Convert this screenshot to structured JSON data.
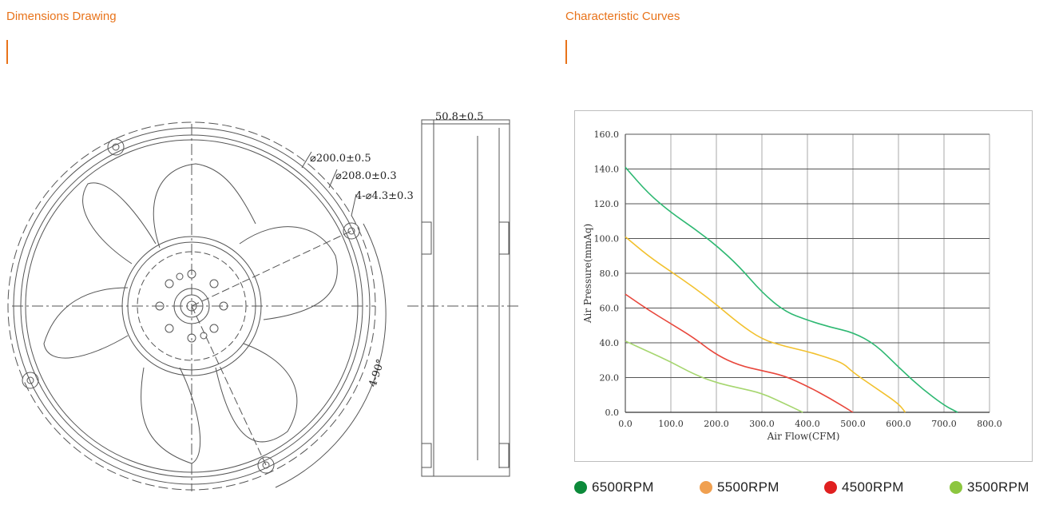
{
  "sections": {
    "dimensions_title": "Dimensions Drawing",
    "curves_title": "Characteristic Curves"
  },
  "accent_color": "#e8731a",
  "drawing": {
    "dim_outer": "⌀200.0±0.5",
    "dim_outer2": "⌀208.0±0.3",
    "dim_holes": "4-⌀4.3±0.3",
    "dim_angle": "4-90°",
    "dim_depth": "50.8±0.5"
  },
  "chart_data": {
    "type": "line",
    "xlabel": "Air Flow(CFM)",
    "ylabel": "Air Pressure(mmAq)",
    "xlim": [
      0,
      800
    ],
    "ylim": [
      0,
      160
    ],
    "x_ticks": [
      "0.0",
      "100.0",
      "200.0",
      "300.0",
      "400.0",
      "500.0",
      "600.0",
      "700.0",
      "800.0"
    ],
    "y_ticks": [
      "0.0",
      "20.0",
      "40.0",
      "60.0",
      "80.0",
      "100.0",
      "120.0",
      "140.0",
      "160.0"
    ],
    "grid": true,
    "legend_position": "bottom",
    "series": [
      {
        "name": "6500RPM",
        "color": "#2eb872",
        "legend_color": "#0c8a3a",
        "points": [
          [
            0,
            141
          ],
          [
            50,
            126
          ],
          [
            100,
            115
          ],
          [
            150,
            106
          ],
          [
            200,
            96
          ],
          [
            250,
            84
          ],
          [
            300,
            69
          ],
          [
            350,
            58
          ],
          [
            400,
            53
          ],
          [
            450,
            49
          ],
          [
            500,
            46
          ],
          [
            550,
            39
          ],
          [
            600,
            26
          ],
          [
            650,
            14
          ],
          [
            700,
            4
          ],
          [
            730,
            0
          ]
        ]
      },
      {
        "name": "5500RPM",
        "color": "#f2c12e",
        "legend_color": "#f0a050",
        "points": [
          [
            0,
            101
          ],
          [
            50,
            90
          ],
          [
            100,
            81
          ],
          [
            150,
            72
          ],
          [
            200,
            62
          ],
          [
            250,
            51
          ],
          [
            300,
            42
          ],
          [
            350,
            38
          ],
          [
            400,
            35
          ],
          [
            450,
            31
          ],
          [
            480,
            28
          ],
          [
            500,
            23
          ],
          [
            550,
            14
          ],
          [
            600,
            5
          ],
          [
            615,
            0
          ]
        ]
      },
      {
        "name": "4500RPM",
        "color": "#e8473c",
        "legend_color": "#e02020",
        "points": [
          [
            0,
            68
          ],
          [
            50,
            59
          ],
          [
            100,
            51
          ],
          [
            150,
            43
          ],
          [
            200,
            33
          ],
          [
            250,
            27
          ],
          [
            300,
            24
          ],
          [
            350,
            21
          ],
          [
            400,
            15
          ],
          [
            450,
            8
          ],
          [
            500,
            0
          ]
        ]
      },
      {
        "name": "3500RPM",
        "color": "#a6d66f",
        "legend_color": "#8cc63f",
        "points": [
          [
            0,
            41
          ],
          [
            50,
            35
          ],
          [
            100,
            29
          ],
          [
            150,
            22
          ],
          [
            200,
            17
          ],
          [
            250,
            14
          ],
          [
            300,
            11
          ],
          [
            350,
            5
          ],
          [
            390,
            0
          ]
        ]
      }
    ]
  }
}
